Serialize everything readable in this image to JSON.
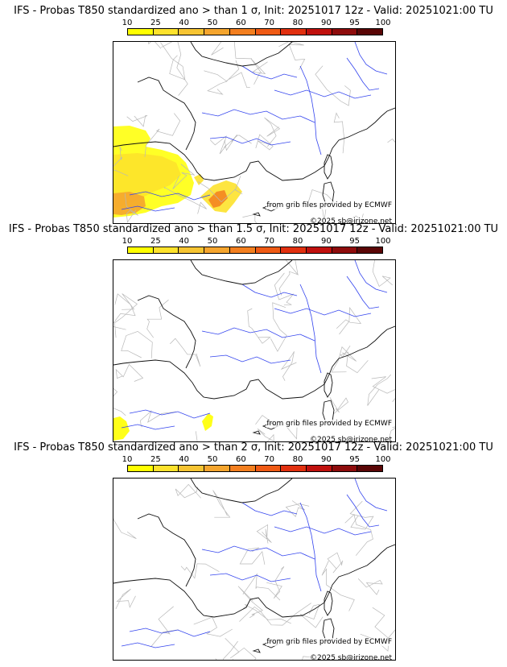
{
  "colorbar": {
    "ticks": [
      "10",
      "25",
      "40",
      "50",
      "60",
      "70",
      "80",
      "90",
      "95",
      "100"
    ],
    "colors": [
      "#ffff00",
      "#fde22c",
      "#f6c432",
      "#f5a52e",
      "#f37f1f",
      "#ef5a14",
      "#e1300f",
      "#c0100d",
      "#8e0c0c",
      "#5a0606"
    ]
  },
  "panels": [
    {
      "title": "IFS - Probas T850  standardized ano > than 1 σ, Init: 20251017 12z - Valid: 20251021:00 TU",
      "source": "from grib files provided by ECMWF",
      "copyright": "©2025 sb@irizone.net",
      "intensity": 1.0
    },
    {
      "title": "IFS - Probas T850  standardized ano > than 1.5 σ, Init: 20251017 12z - Valid: 20251021:00 TU",
      "source": "from grib files provided by ECMWF",
      "copyright": "©2025 sb@irizone.net",
      "intensity": 0.35
    },
    {
      "title": "IFS - Probas T850  standardized ano > than 2 σ, Init: 20251017 12z - Valid: 20251021:00 TU",
      "source": "from grib files provided by ECMWF",
      "copyright": "©2025 sb@irizone.net",
      "intensity": 0
    }
  ]
}
